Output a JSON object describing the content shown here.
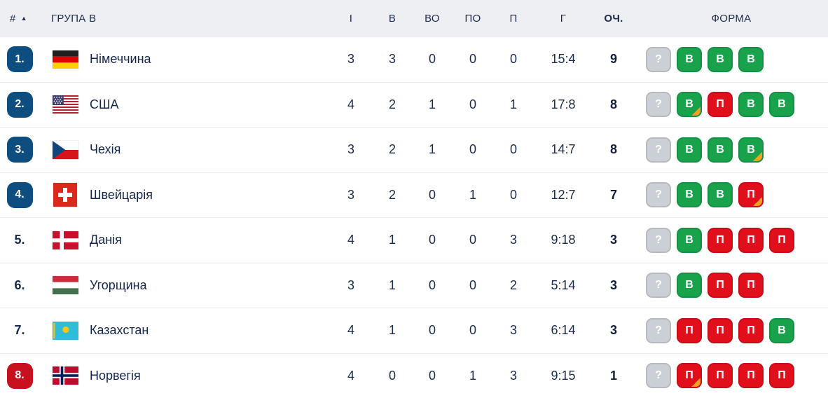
{
  "colors": {
    "header_bg": "#edeff2",
    "row_bg": "#ffffff",
    "separator": "#e8eaed",
    "text_primary": "#15294e",
    "rank_badge_blue": "#0e4d80",
    "rank_badge_red": "#c8101e",
    "form_win": "#17a24b",
    "form_loss": "#e10e1c",
    "form_unknown": "#cbd0d6",
    "form_ot_corner": "#f0a11f"
  },
  "table": {
    "header": {
      "rank": "#",
      "sort_icon": "▲",
      "group": "ГРУПА В",
      "played": "І",
      "wins": "В",
      "ot_wins": "ВО",
      "ot_losses": "ПО",
      "losses": "П",
      "goals": "Г",
      "points": "ОЧ.",
      "form": "ФОРМА"
    },
    "rows": [
      {
        "rank": "1.",
        "rank_style": "blue",
        "team": "Німеччина",
        "flag": "germany",
        "played": "3",
        "wins": "3",
        "ot_wins": "0",
        "ot_losses": "0",
        "losses": "0",
        "goals": "15:4",
        "points": "9",
        "form": [
          {
            "label": "?",
            "type": "unknown",
            "ot": false
          },
          {
            "label": "В",
            "type": "win",
            "ot": false
          },
          {
            "label": "В",
            "type": "win",
            "ot": false
          },
          {
            "label": "В",
            "type": "win",
            "ot": false
          }
        ]
      },
      {
        "rank": "2.",
        "rank_style": "blue",
        "team": "США",
        "flag": "usa",
        "played": "4",
        "wins": "2",
        "ot_wins": "1",
        "ot_losses": "0",
        "losses": "1",
        "goals": "17:8",
        "points": "8",
        "form": [
          {
            "label": "?",
            "type": "unknown",
            "ot": false
          },
          {
            "label": "В",
            "type": "win",
            "ot": true
          },
          {
            "label": "П",
            "type": "loss",
            "ot": false
          },
          {
            "label": "В",
            "type": "win",
            "ot": false
          },
          {
            "label": "В",
            "type": "win",
            "ot": false
          }
        ]
      },
      {
        "rank": "3.",
        "rank_style": "blue",
        "team": "Чехія",
        "flag": "czechia",
        "played": "3",
        "wins": "2",
        "ot_wins": "1",
        "ot_losses": "0",
        "losses": "0",
        "goals": "14:7",
        "points": "8",
        "form": [
          {
            "label": "?",
            "type": "unknown",
            "ot": false
          },
          {
            "label": "В",
            "type": "win",
            "ot": false
          },
          {
            "label": "В",
            "type": "win",
            "ot": false
          },
          {
            "label": "В",
            "type": "win",
            "ot": true
          }
        ]
      },
      {
        "rank": "4.",
        "rank_style": "blue",
        "team": "Швейцарія",
        "flag": "switzerland",
        "played": "3",
        "wins": "2",
        "ot_wins": "0",
        "ot_losses": "1",
        "losses": "0",
        "goals": "12:7",
        "points": "7",
        "form": [
          {
            "label": "?",
            "type": "unknown",
            "ot": false
          },
          {
            "label": "В",
            "type": "win",
            "ot": false
          },
          {
            "label": "В",
            "type": "win",
            "ot": false
          },
          {
            "label": "П",
            "type": "loss",
            "ot": true
          }
        ]
      },
      {
        "rank": "5.",
        "rank_style": "plain",
        "team": "Данія",
        "flag": "denmark",
        "played": "4",
        "wins": "1",
        "ot_wins": "0",
        "ot_losses": "0",
        "losses": "3",
        "goals": "9:18",
        "points": "3",
        "form": [
          {
            "label": "?",
            "type": "unknown",
            "ot": false
          },
          {
            "label": "В",
            "type": "win",
            "ot": false
          },
          {
            "label": "П",
            "type": "loss",
            "ot": false
          },
          {
            "label": "П",
            "type": "loss",
            "ot": false
          },
          {
            "label": "П",
            "type": "loss",
            "ot": false
          }
        ]
      },
      {
        "rank": "6.",
        "rank_style": "plain",
        "team": "Угорщина",
        "flag": "hungary",
        "played": "3",
        "wins": "1",
        "ot_wins": "0",
        "ot_losses": "0",
        "losses": "2",
        "goals": "5:14",
        "points": "3",
        "form": [
          {
            "label": "?",
            "type": "unknown",
            "ot": false
          },
          {
            "label": "В",
            "type": "win",
            "ot": false
          },
          {
            "label": "П",
            "type": "loss",
            "ot": false
          },
          {
            "label": "П",
            "type": "loss",
            "ot": false
          }
        ]
      },
      {
        "rank": "7.",
        "rank_style": "plain",
        "team": "Казахстан",
        "flag": "kazakhstan",
        "played": "4",
        "wins": "1",
        "ot_wins": "0",
        "ot_losses": "0",
        "losses": "3",
        "goals": "6:14",
        "points": "3",
        "form": [
          {
            "label": "?",
            "type": "unknown",
            "ot": false
          },
          {
            "label": "П",
            "type": "loss",
            "ot": false
          },
          {
            "label": "П",
            "type": "loss",
            "ot": false
          },
          {
            "label": "П",
            "type": "loss",
            "ot": false
          },
          {
            "label": "В",
            "type": "win",
            "ot": false
          }
        ]
      },
      {
        "rank": "8.",
        "rank_style": "red",
        "team": "Норвегія",
        "flag": "norway",
        "played": "4",
        "wins": "0",
        "ot_wins": "0",
        "ot_losses": "1",
        "losses": "3",
        "goals": "9:15",
        "points": "1",
        "form": [
          {
            "label": "?",
            "type": "unknown",
            "ot": false
          },
          {
            "label": "П",
            "type": "loss",
            "ot": true
          },
          {
            "label": "П",
            "type": "loss",
            "ot": false
          },
          {
            "label": "П",
            "type": "loss",
            "ot": false
          },
          {
            "label": "П",
            "type": "loss",
            "ot": false
          }
        ]
      }
    ]
  }
}
